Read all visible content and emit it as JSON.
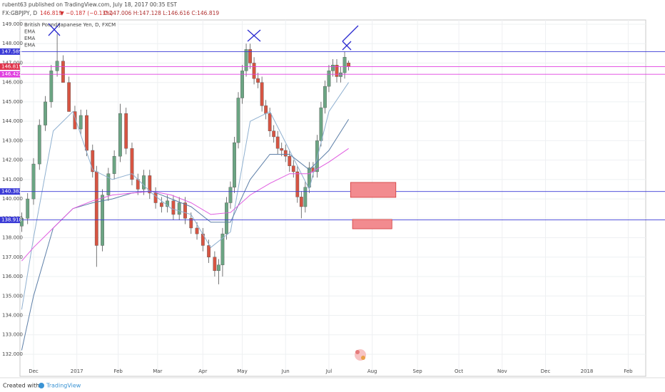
{
  "header": {
    "publisher": "rubent63 published on TradingView.com, July 18, 2017 00:35 EST",
    "symbol": "FX:GBPJPY, D",
    "last": "146.819",
    "change": "▼ −0.187 (−0.13%)",
    "ohlc": "O:147.006 H:147.128 L:146.616 C:146.819"
  },
  "footer": {
    "created": "Created with",
    "brand": "TradingView"
  },
  "chart_data": {
    "type": "candlestick",
    "legend": [
      "British Pound/Japanese Yen, D, FXCM",
      "EMA",
      "EMA",
      "EMA"
    ],
    "xlim": [
      -6.88,
      310.9
    ],
    "xticks": [
      {
        "value": 0,
        "label": "Dec"
      },
      {
        "value": 22,
        "label": "2017"
      },
      {
        "value": 43,
        "label": "Feb"
      },
      {
        "value": 63,
        "label": "Mar"
      },
      {
        "value": 86,
        "label": "Apr"
      },
      {
        "value": 106,
        "label": "May"
      },
      {
        "value": 128,
        "label": "Jun"
      },
      {
        "value": 150,
        "label": "Jul"
      },
      {
        "value": 172,
        "label": "Aug"
      },
      {
        "value": 195,
        "label": "Sep"
      },
      {
        "value": 216,
        "label": "Oct"
      },
      {
        "value": 238,
        "label": "Nov"
      },
      {
        "value": 260,
        "label": "Dec"
      },
      {
        "value": 281,
        "label": "2018"
      },
      {
        "value": 302,
        "label": "Feb"
      }
    ],
    "ylim": [
      130.97,
      149.22
    ],
    "yticks": [
      {
        "value": 132,
        "label": "132.000"
      },
      {
        "value": 133,
        "label": "133.000"
      },
      {
        "value": 134,
        "label": "134.000"
      },
      {
        "value": 135,
        "label": "135.000"
      },
      {
        "value": 136,
        "label": "136.000"
      },
      {
        "value": 137,
        "label": "137.000"
      },
      {
        "value": 138,
        "label": "138.000"
      },
      {
        "value": 139,
        "label": "139.000"
      },
      {
        "value": 140,
        "label": "140.000"
      },
      {
        "value": 141,
        "label": "141.000"
      },
      {
        "value": 142,
        "label": "142.000"
      },
      {
        "value": 143,
        "label": "143.000"
      },
      {
        "value": 144,
        "label": "144.000"
      },
      {
        "value": 145,
        "label": "145.000"
      },
      {
        "value": 146,
        "label": "146.000"
      },
      {
        "value": 147,
        "label": "147.000"
      },
      {
        "value": 148,
        "label": "148.000"
      },
      {
        "value": 149,
        "label": "149.000"
      }
    ],
    "grid": true,
    "up_color": "#6ba583",
    "down_color": "#d75442",
    "candles": {
      "x": [
        -6,
        -3,
        0,
        3,
        6,
        9,
        12,
        15,
        18,
        21,
        24,
        27,
        30,
        32,
        35,
        38,
        41,
        44,
        47,
        50,
        53,
        56,
        59,
        62,
        65,
        68,
        71,
        74,
        77,
        80,
        83,
        86,
        89,
        92,
        94,
        96,
        98,
        100,
        102,
        104,
        106,
        108,
        110,
        112,
        114,
        116,
        118,
        120,
        122,
        124,
        126,
        128,
        130,
        132,
        134,
        136,
        138,
        140,
        142,
        144,
        146,
        148,
        150,
        152,
        154,
        156,
        158,
        160
      ],
      "open": [
        138.6,
        139.0,
        140.0,
        141.8,
        143.8,
        145.0,
        146.6,
        147.1,
        146.0,
        144.5,
        143.6,
        144.3,
        142.5,
        141.4,
        137.6,
        140.2,
        141.3,
        142.2,
        144.4,
        142.6,
        141.0,
        140.5,
        141.2,
        140.3,
        139.8,
        139.6,
        139.9,
        139.2,
        139.8,
        139.0,
        138.5,
        138.2,
        137.6,
        137.0,
        136.3,
        136.6,
        138.2,
        139.8,
        140.6,
        142.9,
        145.2,
        146.6,
        147.7,
        147.0,
        146.2,
        146.0,
        144.8,
        144.4,
        143.5,
        143.2,
        142.6,
        142.5,
        142.2,
        141.7,
        141.4,
        140.1,
        139.6,
        140.6,
        141.6,
        141.4,
        143.0,
        144.7,
        145.8,
        146.6,
        146.9,
        146.3,
        146.5,
        147.006
      ],
      "high": [
        139.3,
        140.3,
        142.1,
        144.1,
        145.3,
        146.9,
        148.5,
        147.4,
        146.3,
        144.8,
        144.6,
        144.6,
        142.8,
        141.7,
        140.5,
        141.6,
        142.5,
        144.9,
        144.7,
        142.9,
        141.3,
        141.5,
        141.5,
        140.6,
        140.1,
        140.2,
        140.2,
        140.1,
        140.1,
        139.3,
        138.8,
        138.5,
        137.9,
        137.3,
        136.9,
        138.5,
        140.1,
        140.9,
        143.2,
        145.5,
        146.9,
        148.0,
        148.0,
        147.3,
        146.5,
        146.3,
        145.1,
        144.7,
        143.8,
        143.5,
        142.9,
        142.8,
        142.5,
        142.0,
        141.7,
        140.4,
        140.9,
        141.9,
        141.9,
        143.3,
        145.0,
        146.1,
        146.9,
        147.2,
        147.2,
        146.8,
        147.6,
        147.128
      ],
      "low": [
        138.3,
        138.7,
        139.7,
        141.5,
        143.5,
        144.7,
        146.3,
        146.8,
        145.7,
        144.2,
        143.3,
        142.2,
        141.1,
        136.5,
        137.3,
        139.9,
        141.0,
        141.9,
        142.3,
        140.7,
        140.2,
        140.2,
        140.0,
        139.5,
        139.3,
        139.3,
        138.9,
        138.9,
        138.7,
        138.2,
        137.9,
        137.3,
        136.7,
        136.0,
        135.6,
        136.0,
        137.9,
        139.5,
        140.3,
        142.6,
        144.9,
        146.3,
        146.7,
        145.9,
        145.7,
        144.5,
        144.1,
        143.2,
        142.9,
        142.3,
        142.2,
        141.9,
        141.4,
        141.1,
        139.8,
        139.0,
        139.3,
        140.3,
        141.1,
        141.1,
        142.7,
        144.4,
        145.5,
        146.3,
        146.0,
        146.0,
        146.2,
        146.616
      ],
      "close": [
        139.0,
        140.0,
        141.8,
        143.8,
        145.0,
        146.6,
        147.1,
        146.0,
        144.5,
        143.6,
        144.3,
        142.5,
        141.4,
        137.6,
        140.2,
        141.3,
        142.2,
        144.4,
        142.6,
        141.0,
        140.5,
        141.2,
        140.3,
        139.8,
        139.6,
        139.9,
        139.2,
        139.8,
        139.0,
        138.5,
        138.2,
        137.6,
        137.0,
        136.3,
        136.6,
        138.2,
        139.8,
        140.6,
        142.9,
        145.2,
        146.6,
        147.7,
        147.0,
        146.2,
        146.0,
        144.8,
        144.4,
        143.5,
        143.2,
        142.6,
        142.5,
        142.2,
        141.7,
        141.4,
        140.1,
        139.6,
        140.6,
        141.6,
        141.4,
        143.0,
        144.7,
        145.8,
        146.6,
        146.9,
        146.3,
        146.5,
        147.3,
        146.819
      ]
    },
    "x": [
      -6,
      0,
      10,
      20,
      30,
      40,
      50,
      60,
      70,
      80,
      90,
      100,
      110,
      120,
      130,
      140,
      150,
      160
    ],
    "series": [
      {
        "name": "EMA",
        "color": "#8fb0d0",
        "values": [
          134.3,
          138.0,
          143.5,
          144.5,
          141.5,
          141.0,
          141.3,
          140.3,
          139.5,
          139.2,
          137.5,
          138.3,
          144.0,
          144.5,
          142.5,
          140.5,
          144.5,
          146.0
        ]
      },
      {
        "name": "EMA",
        "color": "#5d7fa8",
        "values": [
          132.2,
          135.0,
          138.5,
          139.5,
          139.8,
          140.0,
          140.3,
          140.4,
          140.0,
          139.6,
          138.8,
          138.8,
          141.0,
          142.3,
          142.3,
          141.5,
          142.5,
          144.1
        ]
      },
      {
        "name": "EMA",
        "color": "#e05ce0",
        "values": [
          136.8,
          137.5,
          138.5,
          139.5,
          139.9,
          140.2,
          140.3,
          140.4,
          140.2,
          139.8,
          139.2,
          139.3,
          140.2,
          140.8,
          141.3,
          141.3,
          141.9,
          142.6
        ]
      }
    ],
    "hlines": [
      {
        "value": 147.589,
        "color": "#3b3bd6"
      },
      {
        "value": 146.817,
        "color": "#e040e0"
      },
      {
        "value": 146.422,
        "color": "#e040e0"
      },
      {
        "value": 140.382,
        "color": "#3b3bd6"
      },
      {
        "value": 138.918,
        "color": "#3b3bd6"
      }
    ],
    "last_color": "#e0344b",
    "rectangles": [
      {
        "x": [
          161,
          184
        ],
        "y": [
          140.08,
          140.85
        ],
        "color": "#f28b8f"
      },
      {
        "x": [
          162,
          182
        ],
        "y": [
          138.46,
          138.94
        ],
        "color": "#f28b8f"
      }
    ]
  }
}
